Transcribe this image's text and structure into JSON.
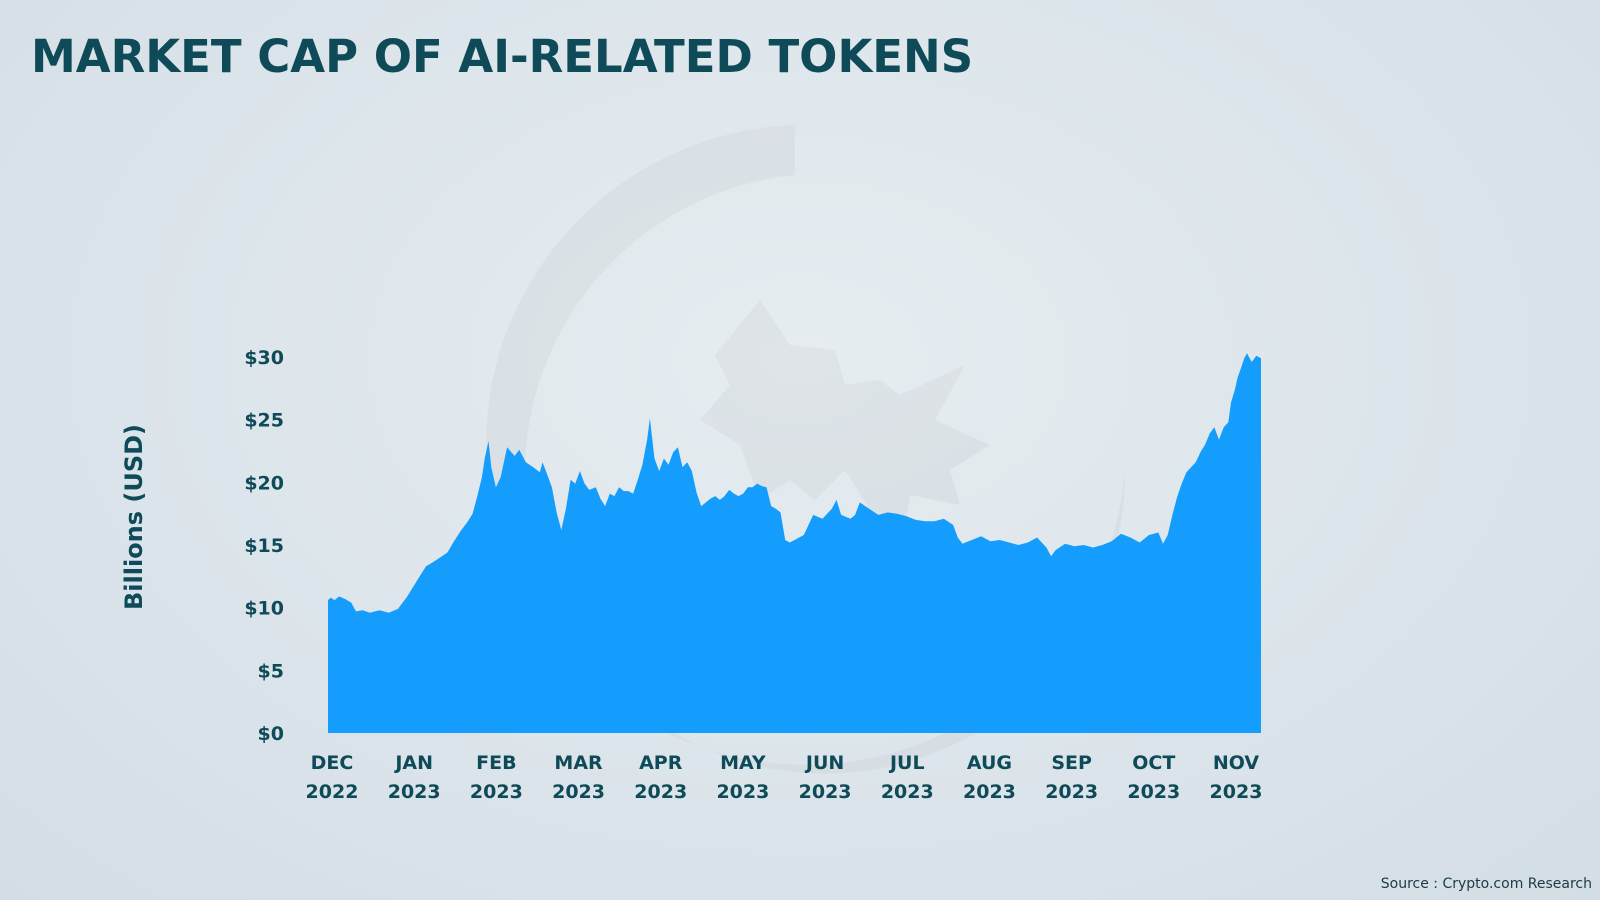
{
  "title": "MARKET CAP OF AI-RELATED TOKENS",
  "source": "Source : Crypto.com Research",
  "chart_data": {
    "type": "area",
    "title": "MARKET CAP OF AI-RELATED TOKENS",
    "ylabel": "Billions (USD)",
    "xlabel": "",
    "ylim": [
      0,
      30
    ],
    "y_ticks": [
      {
        "value": 30,
        "label": "$30"
      },
      {
        "value": 25,
        "label": "$25"
      },
      {
        "value": 20,
        "label": "$20"
      },
      {
        "value": 15,
        "label": "$15"
      },
      {
        "value": 10,
        "label": "$10"
      },
      {
        "value": 5,
        "label": "$5"
      },
      {
        "value": 0,
        "label": "$0"
      }
    ],
    "x_ticks": [
      {
        "month": "DEC",
        "year": "2022"
      },
      {
        "month": "JAN",
        "year": "2023"
      },
      {
        "month": "FEB",
        "year": "2023"
      },
      {
        "month": "MAR",
        "year": "2023"
      },
      {
        "month": "APR",
        "year": "2023"
      },
      {
        "month": "MAY",
        "year": "2023"
      },
      {
        "month": "JUN",
        "year": "2023"
      },
      {
        "month": "JUL",
        "year": "2023"
      },
      {
        "month": "AUG",
        "year": "2023"
      },
      {
        "month": "SEP",
        "year": "2023"
      },
      {
        "month": "OCT",
        "year": "2023"
      },
      {
        "month": "NOV",
        "year": "2023"
      }
    ],
    "fill_color": "#149dfc",
    "grid": false,
    "legend": "none",
    "series": [
      {
        "values": [
          [
            0.0,
            10.6
          ],
          [
            0.03,
            10.8
          ],
          [
            0.07,
            10.6
          ],
          [
            0.12,
            10.9
          ],
          [
            0.18,
            10.7
          ],
          [
            0.25,
            10.4
          ],
          [
            0.3,
            9.7
          ],
          [
            0.37,
            9.8
          ],
          [
            0.45,
            9.6
          ],
          [
            0.55,
            9.8
          ],
          [
            0.65,
            9.6
          ],
          [
            0.75,
            9.9
          ],
          [
            0.85,
            10.9
          ],
          [
            0.95,
            12.1
          ],
          [
            1.05,
            13.3
          ],
          [
            1.12,
            13.6
          ],
          [
            1.2,
            14.0
          ],
          [
            1.28,
            14.4
          ],
          [
            1.35,
            15.3
          ],
          [
            1.42,
            16.1
          ],
          [
            1.5,
            16.9
          ],
          [
            1.55,
            17.5
          ],
          [
            1.6,
            18.9
          ],
          [
            1.65,
            20.4
          ],
          [
            1.68,
            21.9
          ],
          [
            1.72,
            23.3
          ],
          [
            1.75,
            21.2
          ],
          [
            1.8,
            19.6
          ],
          [
            1.85,
            20.4
          ],
          [
            1.92,
            22.8
          ],
          [
            2.0,
            22.1
          ],
          [
            2.05,
            22.6
          ],
          [
            2.12,
            21.6
          ],
          [
            2.2,
            21.2
          ],
          [
            2.27,
            20.8
          ],
          [
            2.3,
            21.6
          ],
          [
            2.35,
            20.6
          ],
          [
            2.4,
            19.6
          ],
          [
            2.45,
            17.6
          ],
          [
            2.5,
            16.2
          ],
          [
            2.55,
            17.9
          ],
          [
            2.6,
            20.2
          ],
          [
            2.65,
            19.9
          ],
          [
            2.7,
            20.9
          ],
          [
            2.75,
            19.9
          ],
          [
            2.8,
            19.4
          ],
          [
            2.87,
            19.6
          ],
          [
            2.92,
            18.7
          ],
          [
            2.97,
            18.1
          ],
          [
            3.02,
            19.1
          ],
          [
            3.07,
            18.9
          ],
          [
            3.12,
            19.6
          ],
          [
            3.17,
            19.3
          ],
          [
            3.22,
            19.3
          ],
          [
            3.27,
            19.1
          ],
          [
            3.32,
            20.2
          ],
          [
            3.37,
            21.4
          ],
          [
            3.42,
            23.4
          ],
          [
            3.45,
            25.1
          ],
          [
            3.5,
            21.9
          ],
          [
            3.55,
            20.9
          ],
          [
            3.6,
            21.9
          ],
          [
            3.65,
            21.4
          ],
          [
            3.7,
            22.4
          ],
          [
            3.75,
            22.8
          ],
          [
            3.8,
            21.2
          ],
          [
            3.85,
            21.6
          ],
          [
            3.9,
            20.9
          ],
          [
            3.95,
            19.2
          ],
          [
            4.0,
            18.1
          ],
          [
            4.05,
            18.4
          ],
          [
            4.1,
            18.7
          ],
          [
            4.15,
            18.9
          ],
          [
            4.2,
            18.6
          ],
          [
            4.25,
            18.9
          ],
          [
            4.3,
            19.4
          ],
          [
            4.35,
            19.1
          ],
          [
            4.4,
            18.9
          ],
          [
            4.45,
            19.1
          ],
          [
            4.5,
            19.6
          ],
          [
            4.55,
            19.6
          ],
          [
            4.6,
            19.9
          ],
          [
            4.65,
            19.7
          ],
          [
            4.7,
            19.6
          ],
          [
            4.75,
            18.1
          ],
          [
            4.8,
            17.9
          ],
          [
            4.85,
            17.6
          ],
          [
            4.9,
            15.4
          ],
          [
            4.95,
            15.2
          ],
          [
            5.0,
            15.4
          ],
          [
            5.1,
            15.8
          ],
          [
            5.2,
            17.4
          ],
          [
            5.3,
            17.1
          ],
          [
            5.4,
            17.9
          ],
          [
            5.45,
            18.6
          ],
          [
            5.5,
            17.4
          ],
          [
            5.6,
            17.1
          ],
          [
            5.65,
            17.4
          ],
          [
            5.7,
            18.4
          ],
          [
            5.8,
            17.9
          ],
          [
            5.9,
            17.4
          ],
          [
            6.0,
            17.6
          ],
          [
            6.1,
            17.5
          ],
          [
            6.2,
            17.3
          ],
          [
            6.3,
            17.0
          ],
          [
            6.4,
            16.9
          ],
          [
            6.5,
            16.9
          ],
          [
            6.6,
            17.1
          ],
          [
            6.7,
            16.6
          ],
          [
            6.75,
            15.6
          ],
          [
            6.8,
            15.1
          ],
          [
            6.9,
            15.4
          ],
          [
            7.0,
            15.7
          ],
          [
            7.1,
            15.3
          ],
          [
            7.2,
            15.4
          ],
          [
            7.3,
            15.2
          ],
          [
            7.4,
            15.0
          ],
          [
            7.5,
            15.2
          ],
          [
            7.6,
            15.6
          ],
          [
            7.7,
            14.8
          ],
          [
            7.75,
            14.1
          ],
          [
            7.8,
            14.6
          ],
          [
            7.9,
            15.1
          ],
          [
            8.0,
            14.9
          ],
          [
            8.1,
            15.0
          ],
          [
            8.2,
            14.8
          ],
          [
            8.3,
            15.0
          ],
          [
            8.4,
            15.3
          ],
          [
            8.5,
            15.9
          ],
          [
            8.6,
            15.6
          ],
          [
            8.7,
            15.2
          ],
          [
            8.8,
            15.8
          ],
          [
            8.9,
            16.0
          ],
          [
            8.95,
            15.1
          ],
          [
            9.0,
            15.8
          ],
          [
            9.05,
            17.4
          ],
          [
            9.1,
            18.8
          ],
          [
            9.15,
            19.9
          ],
          [
            9.2,
            20.8
          ],
          [
            9.3,
            21.6
          ],
          [
            9.35,
            22.4
          ],
          [
            9.4,
            23.0
          ],
          [
            9.45,
            23.9
          ],
          [
            9.5,
            24.4
          ],
          [
            9.55,
            23.4
          ],
          [
            9.6,
            24.4
          ],
          [
            9.65,
            24.8
          ],
          [
            9.68,
            26.4
          ],
          [
            9.72,
            27.4
          ],
          [
            9.75,
            28.4
          ],
          [
            9.78,
            29.0
          ],
          [
            9.82,
            29.9
          ],
          [
            9.85,
            30.3
          ],
          [
            9.9,
            29.6
          ],
          [
            9.95,
            30.1
          ],
          [
            10.0,
            29.9
          ]
        ]
      }
    ]
  }
}
